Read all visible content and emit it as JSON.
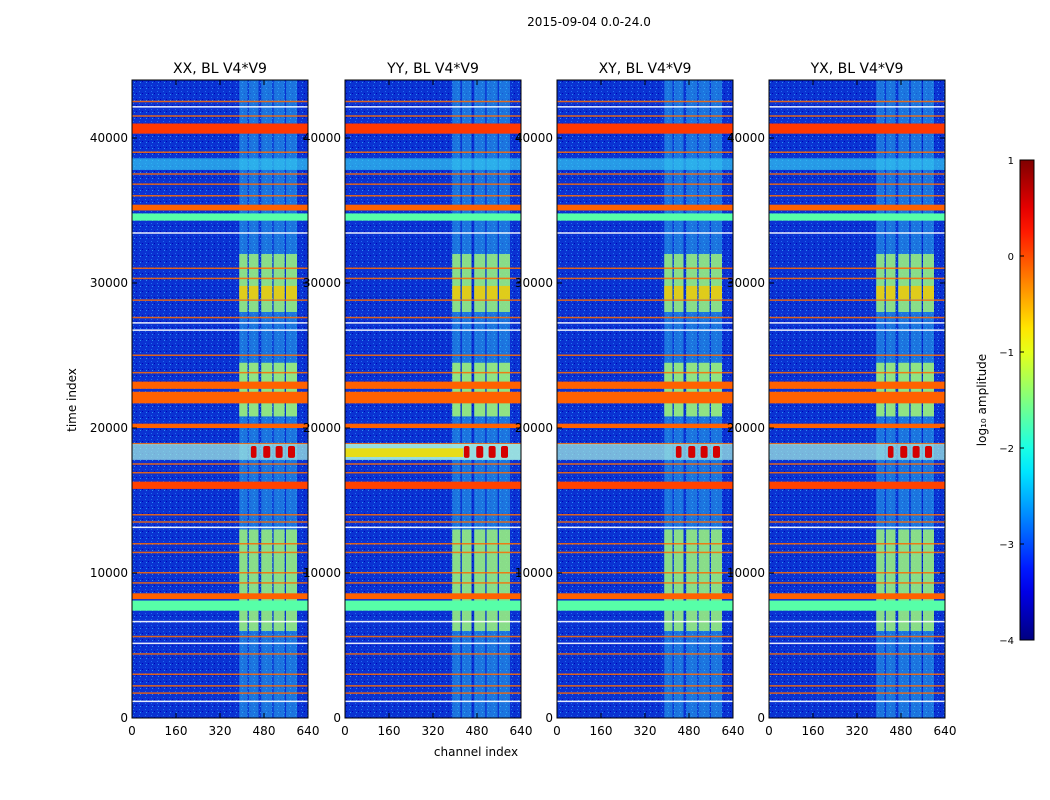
{
  "chart_data": {
    "type": "heatmap",
    "title": "2015-09-04 0.0-24.0",
    "xlabel": "channel index",
    "ylabel": "time index",
    "xlim": [
      0,
      640
    ],
    "ylim": [
      0,
      44000
    ],
    "x_ticks": [
      0,
      160,
      320,
      480,
      640
    ],
    "y_ticks": [
      0,
      10000,
      20000,
      30000,
      40000
    ],
    "panels": [
      {
        "title": "XX, BL V4*V9"
      },
      {
        "title": "YY, BL V4*V9"
      },
      {
        "title": "XY, BL V4*V9"
      },
      {
        "title": "YX, BL V4*V9"
      }
    ],
    "colorbar": {
      "label": "log₁₀ amplitude",
      "range": [
        -4,
        1
      ],
      "ticks": [
        "1",
        "0",
        "−1",
        "−2",
        "−3",
        "−4"
      ]
    },
    "colors": {
      "background": "#0a32d2",
      "rfi_band": "#9cf07a",
      "line_orange": "#ff6a00",
      "hot": "#d40000",
      "cyan": "#33c8f0"
    },
    "rfi_channels": [
      {
        "x0": 390,
        "x1": 420
      },
      {
        "x0": 425,
        "x1": 460
      },
      {
        "x0": 470,
        "x1": 510
      },
      {
        "x0": 515,
        "x1": 555
      },
      {
        "x0": 560,
        "x1": 600
      }
    ],
    "flagged_rows": [
      {
        "y0": 40300,
        "y1": 41000,
        "level": 0.1
      },
      {
        "y0": 35000,
        "y1": 35400,
        "level": -0.1
      },
      {
        "y0": 34300,
        "y1": 34800,
        "level": -1.7
      },
      {
        "y0": 22700,
        "y1": 23200,
        "level": -0.1
      },
      {
        "y0": 21700,
        "y1": 22500,
        "level": -0.1
      },
      {
        "y0": 20000,
        "y1": 20300,
        "level": -0.1
      },
      {
        "y0": 15800,
        "y1": 16300,
        "level": 0.05
      },
      {
        "y0": 8200,
        "y1": 8600,
        "level": -0.1
      },
      {
        "y0": 7400,
        "y1": 8100,
        "level": -1.7
      }
    ],
    "line_rows": [
      42500,
      41500,
      39000,
      37500,
      36800,
      36000,
      31000,
      30300,
      28800,
      27600,
      25000,
      23800,
      18900,
      17500,
      16900,
      14000,
      13500,
      12000,
      11400,
      10000,
      9300,
      5600,
      4400,
      3000,
      2200,
      1700
    ],
    "burst": {
      "y0": 17800,
      "y1": 18900,
      "level": 0.4
    }
  }
}
